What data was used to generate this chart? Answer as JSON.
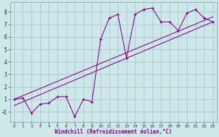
{
  "xlabel": "Windchill (Refroidissement éolien,°C)",
  "bg_color": "#cce8e8",
  "grid_color": "#aabbcc",
  "line_color": "#880088",
  "x_hours": [
    0,
    1,
    2,
    3,
    4,
    5,
    6,
    7,
    8,
    9,
    10,
    11,
    12,
    13,
    14,
    15,
    16,
    17,
    18,
    19,
    20,
    21,
    22,
    23
  ],
  "y_windchill": [
    1.0,
    1.1,
    -0.1,
    0.6,
    0.7,
    1.2,
    1.2,
    -0.4,
    1.0,
    0.8,
    5.8,
    7.5,
    7.8,
    4.3,
    7.8,
    8.2,
    8.3,
    7.2,
    7.2,
    6.5,
    7.9,
    8.2,
    7.5,
    7.2
  ],
  "ylim": [
    -0.8,
    8.8
  ],
  "xlim": [
    -0.5,
    23.5
  ],
  "yticks": [
    0,
    1,
    2,
    3,
    4,
    5,
    6,
    7,
    8
  ],
  "ytick_labels": [
    "-0",
    "1",
    "2",
    "3",
    "4",
    "5",
    "6",
    "7",
    "8"
  ],
  "xticks": [
    0,
    1,
    2,
    3,
    4,
    5,
    6,
    7,
    8,
    9,
    10,
    11,
    12,
    13,
    14,
    15,
    16,
    17,
    18,
    19,
    20,
    21,
    22,
    23
  ],
  "trend1_x": [
    0,
    23
  ],
  "trend1_y": [
    1.0,
    7.6
  ],
  "trend2_x": [
    0,
    23
  ],
  "trend2_y": [
    0.5,
    7.2
  ]
}
